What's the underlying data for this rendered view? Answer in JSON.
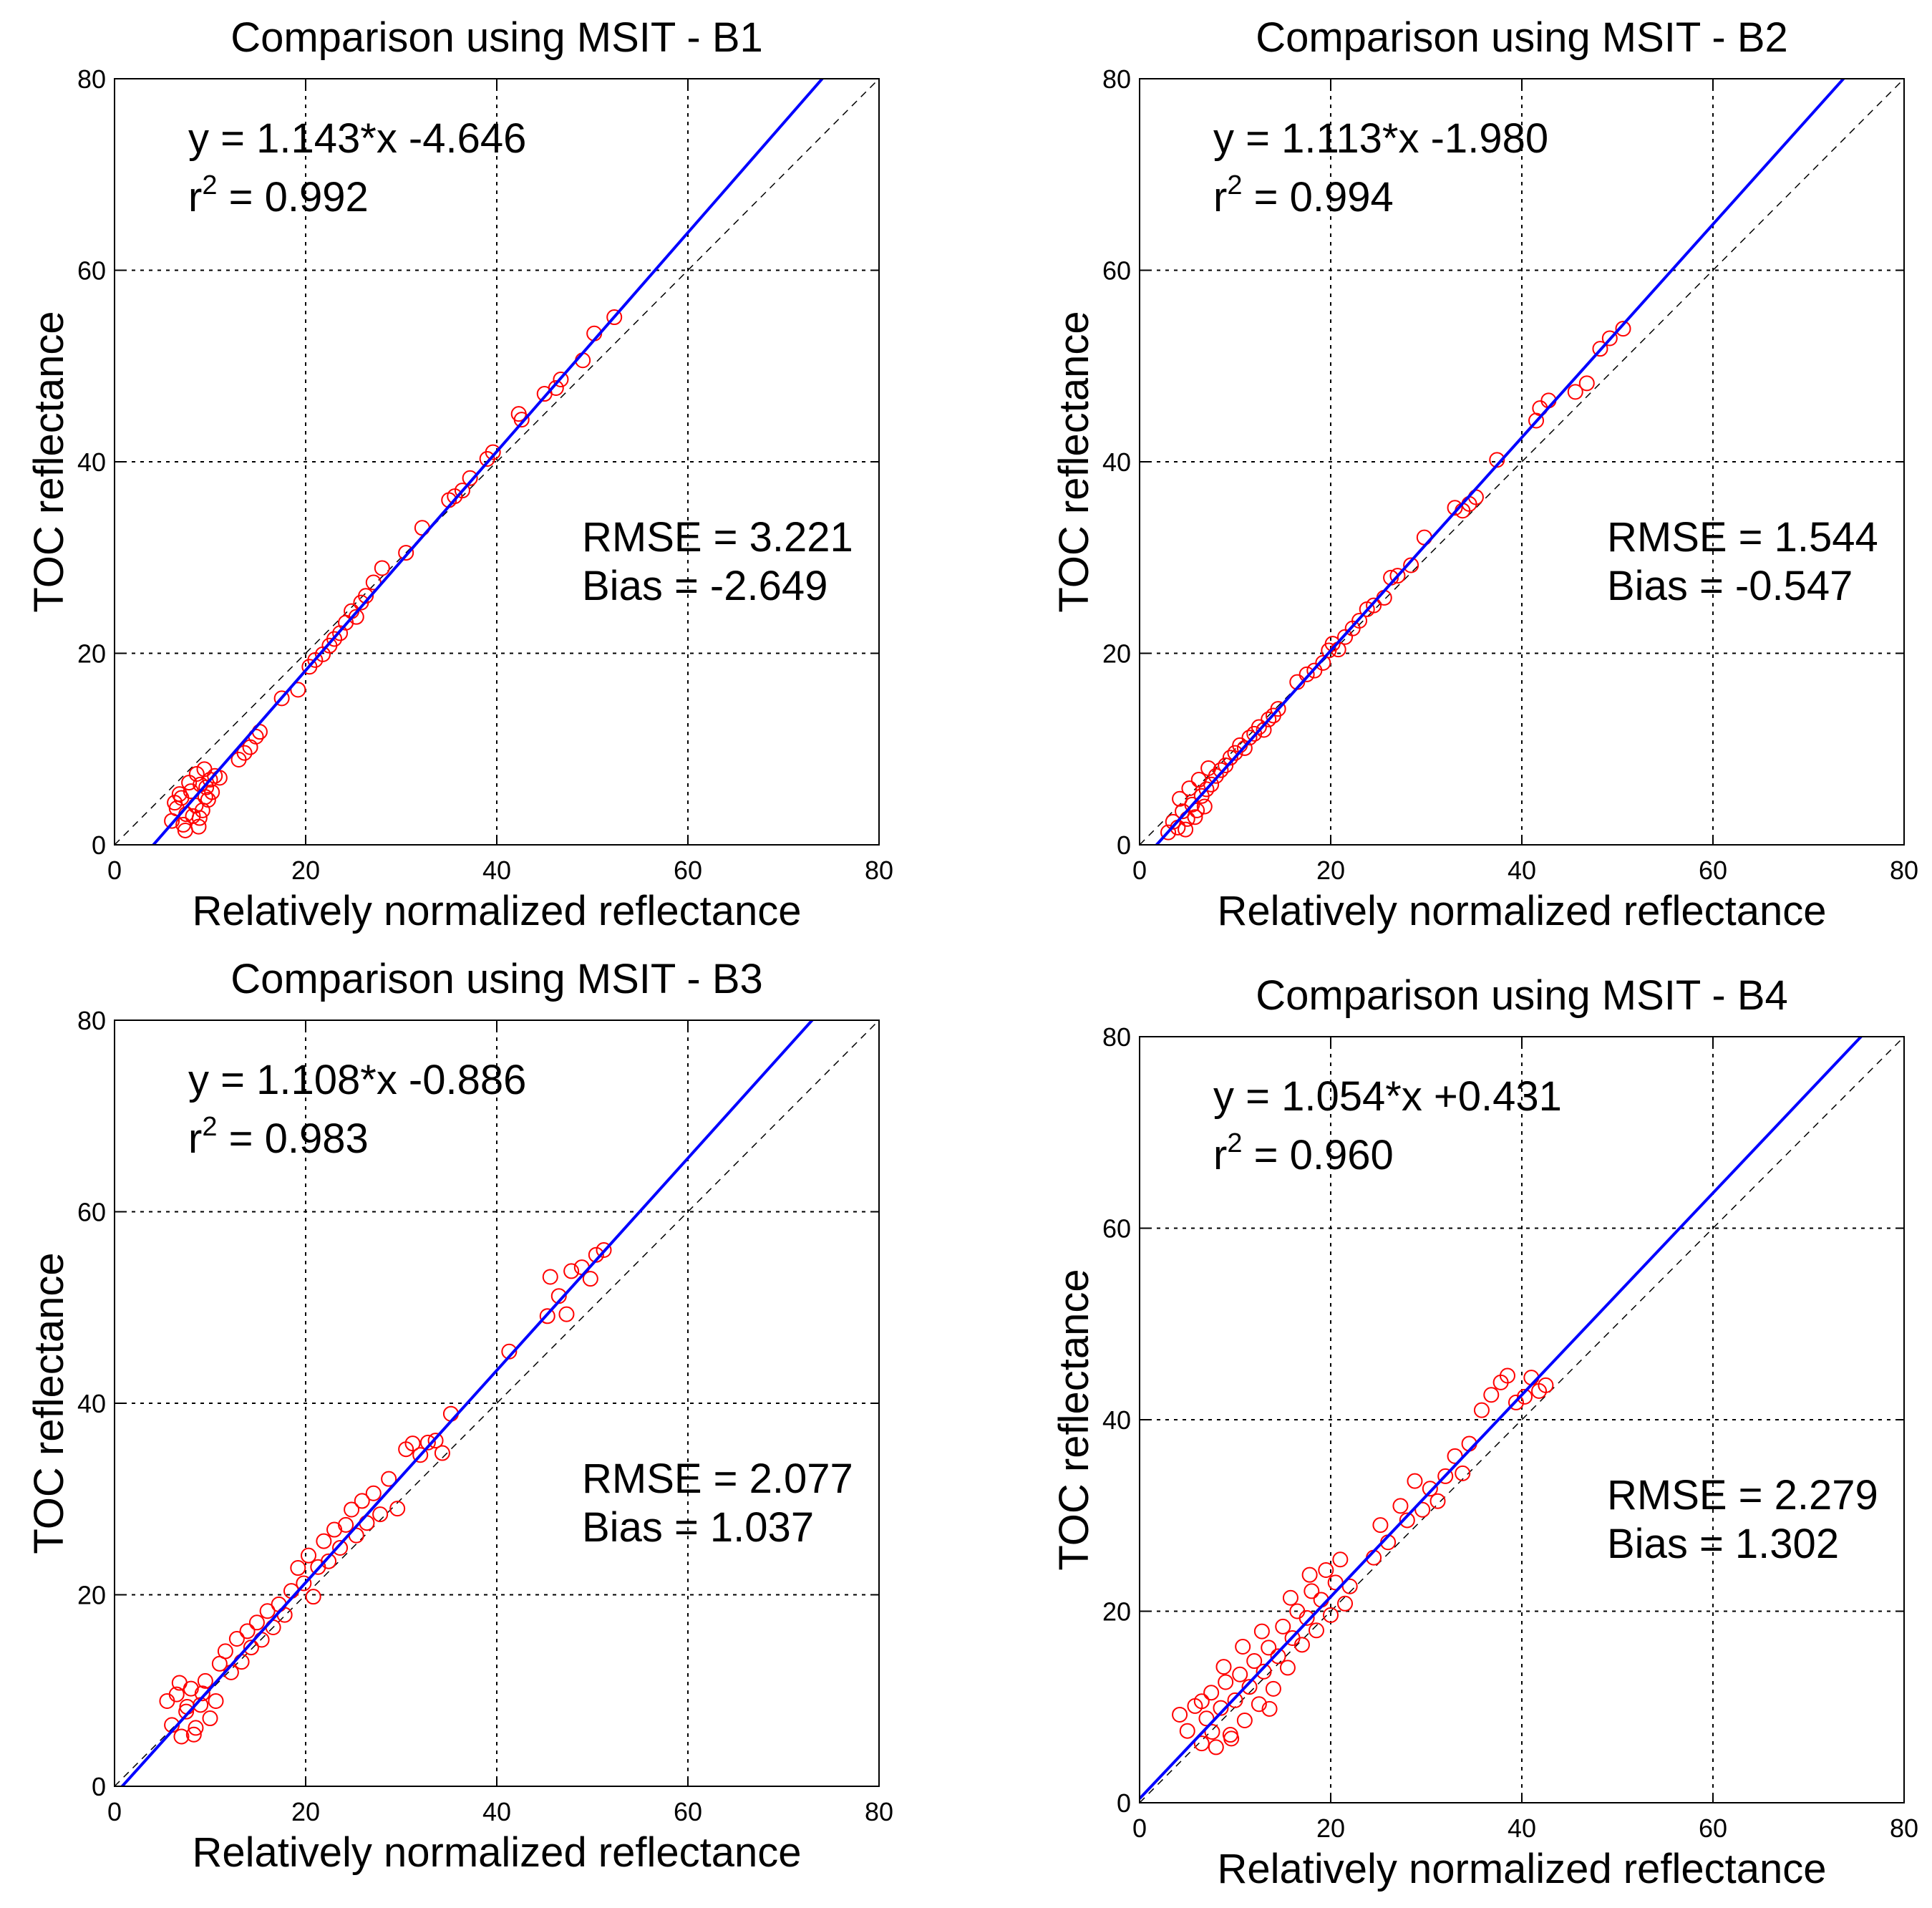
{
  "figure": {
    "point_color": "#ff0000",
    "fit_color": "#0000ff",
    "grid_color": "#000000"
  },
  "chart_data": [
    {
      "type": "scatter",
      "title": "Comparison using MSIT - B1",
      "xlabel": "Relatively normalized reflectance",
      "ylabel": "TOC reflectance",
      "xlim": [
        0,
        80
      ],
      "ylim": [
        0,
        80
      ],
      "xticks": [
        0,
        20,
        40,
        60,
        80
      ],
      "yticks": [
        0,
        20,
        40,
        60,
        80
      ],
      "grid": true,
      "fit": {
        "slope": 1.143,
        "intercept": -4.646
      },
      "equation": "y = 1.143*x -4.646",
      "r2_prefix": "r",
      "r2_exp": "2",
      "r2_text": " = 0.992",
      "rmse": "RMSE = 3.221",
      "bias": "Bias = -2.649",
      "points": [
        [
          6.0,
          2.5
        ],
        [
          6.5,
          3.8
        ],
        [
          7.0,
          4.9
        ],
        [
          7.5,
          3.2
        ],
        [
          8.0,
          5.6
        ],
        [
          8.5,
          4.1
        ],
        [
          9.0,
          6.3
        ],
        [
          9.5,
          5.0
        ],
        [
          10.0,
          6.8
        ],
        [
          6.3,
          4.4
        ],
        [
          7.2,
          2.1
        ],
        [
          8.2,
          3.0
        ],
        [
          8.8,
          1.9
        ],
        [
          9.2,
          3.6
        ],
        [
          9.8,
          4.7
        ],
        [
          10.5,
          7.2
        ],
        [
          7.8,
          6.5
        ],
        [
          6.8,
          5.3
        ],
        [
          8.6,
          7.4
        ],
        [
          9.4,
          7.9
        ],
        [
          11.0,
          7.0
        ],
        [
          7.4,
          1.5
        ],
        [
          8.9,
          2.8
        ],
        [
          9.6,
          6.0
        ],
        [
          10.2,
          5.5
        ],
        [
          13.0,
          8.9
        ],
        [
          13.6,
          9.6
        ],
        [
          14.2,
          10.2
        ],
        [
          14.8,
          11.3
        ],
        [
          15.2,
          11.8
        ],
        [
          17.5,
          15.3
        ],
        [
          19.2,
          16.2
        ],
        [
          20.4,
          18.6
        ],
        [
          21.0,
          19.3
        ],
        [
          21.8,
          19.9
        ],
        [
          22.5,
          20.8
        ],
        [
          23.0,
          21.5
        ],
        [
          23.6,
          22.1
        ],
        [
          24.2,
          23.2
        ],
        [
          24.8,
          24.4
        ],
        [
          25.3,
          23.8
        ],
        [
          25.8,
          25.3
        ],
        [
          26.3,
          26.0
        ],
        [
          27.1,
          27.4
        ],
        [
          28.0,
          28.9
        ],
        [
          30.5,
          30.5
        ],
        [
          32.2,
          33.1
        ],
        [
          35.0,
          36.0
        ],
        [
          35.6,
          36.4
        ],
        [
          36.4,
          37.0
        ],
        [
          37.2,
          38.3
        ],
        [
          39.0,
          40.3
        ],
        [
          39.6,
          41.0
        ],
        [
          42.3,
          45.0
        ],
        [
          42.6,
          44.4
        ],
        [
          45.0,
          47.1
        ],
        [
          46.2,
          47.7
        ],
        [
          46.7,
          48.6
        ],
        [
          49.0,
          50.6
        ],
        [
          50.2,
          53.4
        ],
        [
          52.3,
          55.1
        ]
      ]
    },
    {
      "type": "scatter",
      "title": "Comparison using MSIT - B2",
      "xlabel": "Relatively normalized reflectance",
      "ylabel": "TOC reflectance",
      "xlim": [
        0,
        80
      ],
      "ylim": [
        0,
        80
      ],
      "xticks": [
        0,
        20,
        40,
        60,
        80
      ],
      "yticks": [
        0,
        20,
        40,
        60,
        80
      ],
      "grid": true,
      "fit": {
        "slope": 1.113,
        "intercept": -1.98
      },
      "equation": "y = 1.113*x -1.980",
      "r2_prefix": "r",
      "r2_exp": "2",
      "r2_text": " = 0.994",
      "rmse": "RMSE = 1.544",
      "bias": "Bias = -0.547",
      "points": [
        [
          3.0,
          1.3
        ],
        [
          3.5,
          2.4
        ],
        [
          4.0,
          1.8
        ],
        [
          4.5,
          3.5
        ],
        [
          5.0,
          2.7
        ],
        [
          5.5,
          4.2
        ],
        [
          6.0,
          3.6
        ],
        [
          6.5,
          5.1
        ],
        [
          7.0,
          5.8
        ],
        [
          7.5,
          6.3
        ],
        [
          8.0,
          7.2
        ],
        [
          8.5,
          7.8
        ],
        [
          9.0,
          8.3
        ],
        [
          9.5,
          9.1
        ],
        [
          10.0,
          9.6
        ],
        [
          10.5,
          10.4
        ],
        [
          11.0,
          10.1
        ],
        [
          11.5,
          11.2
        ],
        [
          12.0,
          11.6
        ],
        [
          12.5,
          12.3
        ],
        [
          13.0,
          12.0
        ],
        [
          13.5,
          13.1
        ],
        [
          4.2,
          4.8
        ],
        [
          5.2,
          5.9
        ],
        [
          6.2,
          6.8
        ],
        [
          7.2,
          8.0
        ],
        [
          4.8,
          1.6
        ],
        [
          5.8,
          2.9
        ],
        [
          6.8,
          4.0
        ],
        [
          14.0,
          13.5
        ],
        [
          14.5,
          14.2
        ],
        [
          16.5,
          17.0
        ],
        [
          17.5,
          17.8
        ],
        [
          18.3,
          18.2
        ],
        [
          19.2,
          19.0
        ],
        [
          19.8,
          20.3
        ],
        [
          20.2,
          21.0
        ],
        [
          20.8,
          20.4
        ],
        [
          21.5,
          21.7
        ],
        [
          22.3,
          22.6
        ],
        [
          23.0,
          23.4
        ],
        [
          23.8,
          24.6
        ],
        [
          24.5,
          25.0
        ],
        [
          25.6,
          25.8
        ],
        [
          26.3,
          27.9
        ],
        [
          27.0,
          28.1
        ],
        [
          28.4,
          29.2
        ],
        [
          29.8,
          32.1
        ],
        [
          33.0,
          35.2
        ],
        [
          33.8,
          34.9
        ],
        [
          34.5,
          35.6
        ],
        [
          35.2,
          36.3
        ],
        [
          37.4,
          40.2
        ],
        [
          41.5,
          44.3
        ],
        [
          41.9,
          45.6
        ],
        [
          42.8,
          46.4
        ],
        [
          45.6,
          47.3
        ],
        [
          46.8,
          48.2
        ],
        [
          48.2,
          51.8
        ],
        [
          49.2,
          52.9
        ],
        [
          50.6,
          53.9
        ]
      ]
    },
    {
      "type": "scatter",
      "title": "Comparison using MSIT - B3",
      "xlabel": "Relatively normalized reflectance",
      "ylabel": "TOC reflectance",
      "xlim": [
        0,
        80
      ],
      "ylim": [
        0,
        80
      ],
      "xticks": [
        0,
        20,
        40,
        60,
        80
      ],
      "yticks": [
        0,
        20,
        40,
        60,
        80
      ],
      "grid": true,
      "fit": {
        "slope": 1.108,
        "intercept": -0.886
      },
      "equation": "y = 1.108*x -0.886",
      "r2_prefix": "r",
      "r2_exp": "2",
      "r2_text": " = 0.983",
      "rmse": "RMSE = 2.077",
      "bias": "Bias = 1.037",
      "points": [
        [
          5.5,
          8.9
        ],
        [
          6.0,
          6.4
        ],
        [
          6.5,
          9.6
        ],
        [
          7.0,
          5.2
        ],
        [
          7.5,
          7.8
        ],
        [
          8.0,
          10.2
        ],
        [
          8.5,
          6.1
        ],
        [
          9.0,
          8.5
        ],
        [
          9.5,
          11.0
        ],
        [
          10.0,
          7.1
        ],
        [
          6.8,
          10.8
        ],
        [
          7.6,
          8.3
        ],
        [
          8.3,
          5.4
        ],
        [
          9.2,
          9.7
        ],
        [
          10.6,
          8.9
        ],
        [
          11.0,
          12.8
        ],
        [
          11.6,
          14.1
        ],
        [
          12.2,
          11.9
        ],
        [
          12.8,
          15.4
        ],
        [
          13.3,
          13.0
        ],
        [
          13.9,
          16.2
        ],
        [
          14.3,
          14.5
        ],
        [
          14.9,
          17.1
        ],
        [
          15.4,
          15.3
        ],
        [
          16.0,
          18.3
        ],
        [
          16.6,
          16.6
        ],
        [
          17.2,
          19.0
        ],
        [
          17.8,
          17.9
        ],
        [
          18.5,
          20.4
        ],
        [
          19.2,
          22.8
        ],
        [
          19.8,
          21.2
        ],
        [
          20.3,
          24.1
        ],
        [
          20.8,
          19.8
        ],
        [
          21.3,
          22.9
        ],
        [
          21.9,
          25.6
        ],
        [
          22.4,
          23.5
        ],
        [
          23.0,
          26.8
        ],
        [
          23.6,
          24.9
        ],
        [
          24.2,
          27.3
        ],
        [
          24.8,
          28.9
        ],
        [
          25.3,
          26.2
        ],
        [
          25.9,
          29.8
        ],
        [
          26.4,
          27.5
        ],
        [
          27.1,
          30.6
        ],
        [
          27.8,
          28.4
        ],
        [
          28.7,
          32.1
        ],
        [
          29.6,
          29.0
        ],
        [
          30.5,
          35.2
        ],
        [
          31.2,
          35.8
        ],
        [
          32.0,
          34.6
        ],
        [
          32.8,
          35.9
        ],
        [
          33.6,
          36.1
        ],
        [
          34.3,
          34.8
        ],
        [
          35.2,
          38.9
        ],
        [
          41.3,
          45.4
        ],
        [
          45.3,
          49.1
        ],
        [
          45.6,
          53.2
        ],
        [
          46.5,
          51.2
        ],
        [
          47.3,
          49.3
        ],
        [
          47.8,
          53.8
        ],
        [
          48.9,
          54.2
        ],
        [
          49.8,
          53.0
        ],
        [
          50.4,
          55.5
        ],
        [
          51.2,
          56.0
        ]
      ]
    },
    {
      "type": "scatter",
      "title": "Comparison using MSIT - B4",
      "xlabel": "Relatively normalized reflectance",
      "ylabel": "TOC reflectance",
      "xlim": [
        0,
        80
      ],
      "ylim": [
        0,
        80
      ],
      "xticks": [
        0,
        20,
        40,
        60,
        80
      ],
      "yticks": [
        0,
        20,
        40,
        60,
        80
      ],
      "grid": true,
      "fit": {
        "slope": 1.054,
        "intercept": 0.431
      },
      "equation": "y = 1.054*x +0.431",
      "r2_prefix": "r",
      "r2_exp": "2",
      "r2_text": " = 0.960",
      "rmse": "RMSE = 2.279",
      "bias": "Bias = 1.302",
      "points": [
        [
          4.2,
          9.2
        ],
        [
          5.0,
          7.5
        ],
        [
          5.8,
          10.1
        ],
        [
          6.5,
          6.2
        ],
        [
          7.0,
          8.8
        ],
        [
          7.5,
          11.5
        ],
        [
          8.0,
          5.8
        ],
        [
          8.5,
          9.9
        ],
        [
          9.0,
          12.6
        ],
        [
          9.5,
          7.1
        ],
        [
          10.0,
          10.7
        ],
        [
          10.5,
          13.4
        ],
        [
          11.0,
          8.6
        ],
        [
          11.5,
          12.1
        ],
        [
          12.0,
          14.8
        ],
        [
          12.5,
          10.3
        ],
        [
          13.0,
          13.7
        ],
        [
          13.5,
          16.2
        ],
        [
          14.0,
          11.9
        ],
        [
          14.5,
          15.3
        ],
        [
          15.0,
          18.4
        ],
        [
          15.5,
          14.1
        ],
        [
          16.0,
          17.2
        ],
        [
          16.5,
          20.0
        ],
        [
          17.0,
          16.5
        ],
        [
          17.5,
          19.3
        ],
        [
          18.0,
          22.1
        ],
        [
          18.5,
          18.0
        ],
        [
          19.0,
          21.2
        ],
        [
          19.5,
          24.3
        ],
        [
          20.0,
          19.6
        ],
        [
          20.5,
          23.0
        ],
        [
          21.0,
          25.4
        ],
        [
          21.5,
          20.8
        ],
        [
          22.0,
          22.6
        ],
        [
          8.8,
          14.2
        ],
        [
          10.8,
          16.3
        ],
        [
          12.8,
          17.9
        ],
        [
          15.8,
          21.4
        ],
        [
          17.8,
          23.8
        ],
        [
          6.5,
          10.6
        ],
        [
          7.6,
          7.4
        ],
        [
          9.6,
          6.7
        ],
        [
          13.6,
          9.8
        ],
        [
          24.5,
          25.6
        ],
        [
          25.2,
          29.0
        ],
        [
          26.0,
          27.2
        ],
        [
          27.3,
          31.0
        ],
        [
          28.0,
          29.5
        ],
        [
          28.8,
          33.6
        ],
        [
          29.6,
          30.6
        ],
        [
          30.4,
          32.8
        ],
        [
          31.2,
          31.5
        ],
        [
          32.0,
          34.1
        ],
        [
          33.0,
          36.2
        ],
        [
          33.8,
          34.4
        ],
        [
          34.5,
          37.5
        ],
        [
          35.8,
          41.0
        ],
        [
          36.8,
          42.6
        ],
        [
          37.8,
          43.9
        ],
        [
          38.5,
          44.6
        ],
        [
          39.4,
          41.8
        ],
        [
          40.3,
          42.4
        ],
        [
          41.0,
          44.4
        ],
        [
          41.8,
          43.0
        ],
        [
          42.5,
          43.6
        ]
      ]
    }
  ]
}
